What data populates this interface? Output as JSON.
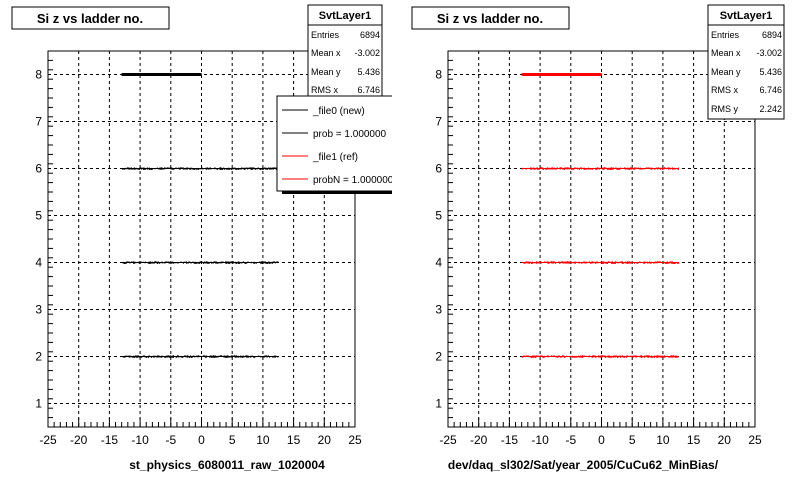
{
  "panels": [
    {
      "title": "Si z vs ladder no.",
      "xlabel": "st_physics_6080011_raw_1020004",
      "stats": {
        "name": "SvtLayer1",
        "rows": [
          {
            "label": "Entries",
            "value": "6894"
          },
          {
            "label": "Mean x",
            "value": "-3.002"
          },
          {
            "label": "Mean y",
            "value": "5.436"
          },
          {
            "label": "RMS x",
            "value": "6.746"
          }
        ]
      },
      "legend": [
        {
          "text": "_file0 (new)",
          "color": "#000000"
        },
        {
          "text": "prob = 1.000000",
          "color": "#000000"
        },
        {
          "text": "_file1 (ref)",
          "color": "#ff0000"
        },
        {
          "text": "probN = 1.000000",
          "color": "#ff0000"
        }
      ]
    },
    {
      "title": "Si z vs ladder no.",
      "xlabel": "dev/daq_sl302/Sat/year_2005/CuCu62_MinBias/",
      "stats": {
        "name": "SvtLayer1",
        "rows": [
          {
            "label": "Entries",
            "value": "6894"
          },
          {
            "label": "Mean x",
            "value": "-3.002"
          },
          {
            "label": "Mean y",
            "value": "5.436"
          },
          {
            "label": "RMS x",
            "value": "6.746"
          },
          {
            "label": "RMS y",
            "value": "2.242"
          }
        ]
      },
      "legend": []
    }
  ],
  "chart_data": [
    {
      "type": "scatter",
      "title": "Si z vs ladder no.",
      "xlabel": "st_physics_6080011_raw_1020004",
      "ylabel": "",
      "xlim": [
        -25,
        25
      ],
      "ylim": [
        0.5,
        8.5
      ],
      "xticks": [
        -25,
        -20,
        -15,
        -10,
        -5,
        0,
        5,
        10,
        15,
        20,
        25
      ],
      "yticks": [
        1,
        2,
        3,
        4,
        5,
        6,
        7,
        8
      ],
      "grid": true,
      "legend_position": "top-right",
      "series": [
        {
          "name": "_file0 (new)",
          "color": "#000000",
          "bands": [
            {
              "y": 2,
              "xmin": -13,
              "xmax": 12.5
            },
            {
              "y": 4,
              "xmin": -13,
              "xmax": 12.5
            },
            {
              "y": 6,
              "xmin": -13,
              "xmax": 12.5
            },
            {
              "y": 8,
              "xmin": -13,
              "xmax": 0
            }
          ]
        }
      ]
    },
    {
      "type": "scatter",
      "title": "Si z vs ladder no.",
      "xlabel": "dev/daq_sl302/Sat/year_2005/CuCu62_MinBias/",
      "ylabel": "",
      "xlim": [
        -25,
        25
      ],
      "ylim": [
        0.5,
        8.5
      ],
      "xticks": [
        -25,
        -20,
        -15,
        -10,
        -5,
        0,
        5,
        10,
        15,
        20,
        25
      ],
      "yticks": [
        1,
        2,
        3,
        4,
        5,
        6,
        7,
        8
      ],
      "grid": true,
      "series": [
        {
          "name": "",
          "color": "#ff0000",
          "bands": [
            {
              "y": 2,
              "xmin": -13,
              "xmax": 12.5
            },
            {
              "y": 4,
              "xmin": -13,
              "xmax": 12.5
            },
            {
              "y": 6,
              "xmin": -13,
              "xmax": 12.5
            },
            {
              "y": 8,
              "xmin": -13,
              "xmax": 0
            }
          ]
        }
      ]
    }
  ]
}
